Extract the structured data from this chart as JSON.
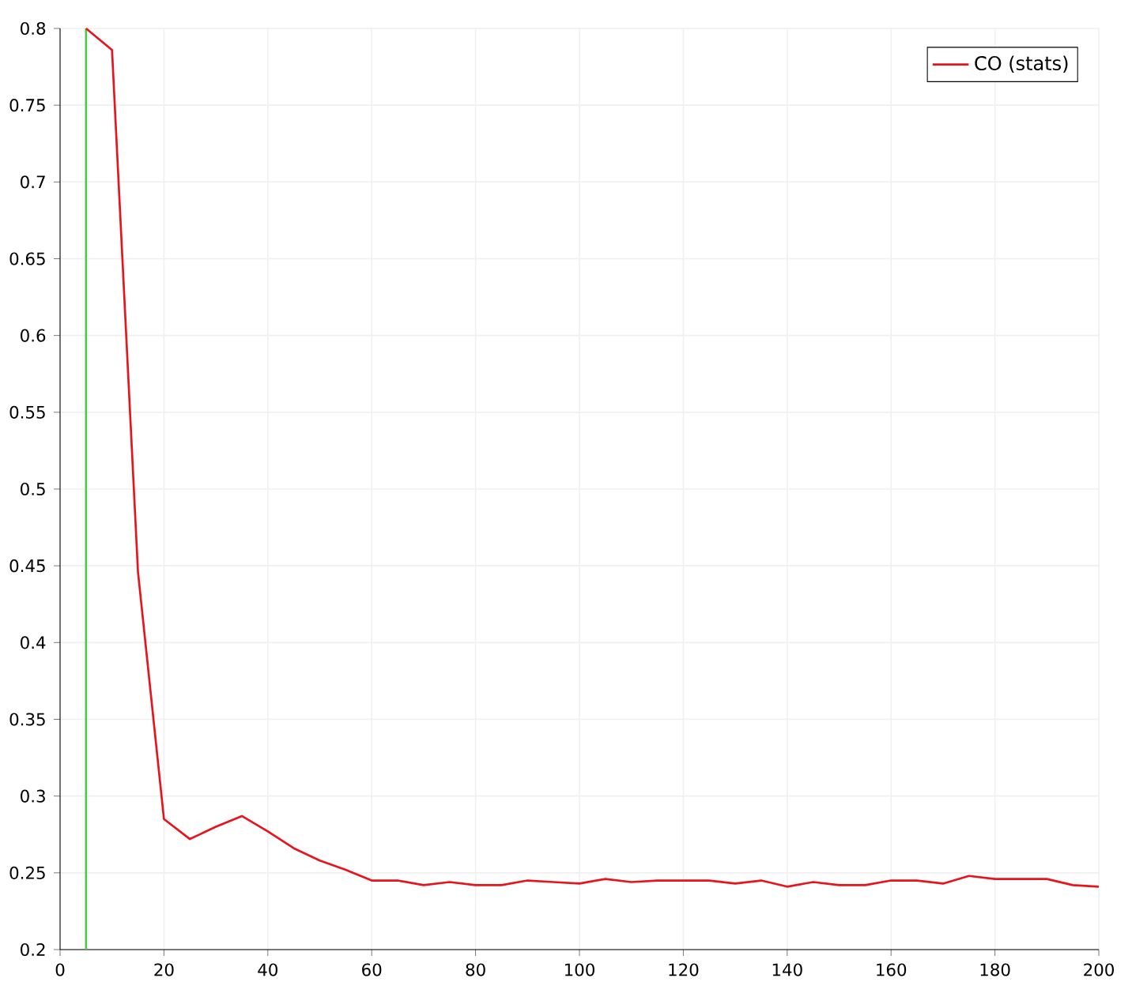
{
  "chart_data": {
    "type": "line",
    "xlim": [
      0,
      200
    ],
    "ylim": [
      0.2,
      0.8
    ],
    "xticks": [
      0,
      20,
      40,
      60,
      80,
      100,
      120,
      140,
      160,
      180,
      200
    ],
    "yticks": [
      0.2,
      0.25,
      0.3,
      0.35,
      0.4,
      0.45,
      0.5,
      0.55,
      0.6,
      0.65,
      0.7,
      0.75,
      0.8
    ],
    "grid": true,
    "legend": "top right",
    "line_style": "solid",
    "marker": "none",
    "ref_lines": [
      {
        "axis": "x",
        "value": 5,
        "color": "#4ec94a",
        "line_style": "solid"
      }
    ],
    "series": [
      {
        "name": "CO (stats)",
        "color": "#e8141c",
        "x": [
          5,
          10,
          15,
          20,
          25,
          30,
          35,
          40,
          45,
          50,
          55,
          60,
          65,
          70,
          75,
          80,
          85,
          90,
          95,
          100,
          105,
          110,
          115,
          120,
          125,
          130,
          135,
          140,
          145,
          150,
          155,
          160,
          165,
          170,
          175,
          180,
          185,
          190,
          195,
          200
        ],
        "values": [
          0.8,
          0.786,
          0.446,
          0.285,
          0.272,
          0.28,
          0.287,
          0.277,
          0.266,
          0.258,
          0.252,
          0.245,
          0.245,
          0.242,
          0.244,
          0.242,
          0.242,
          0.245,
          0.244,
          0.243,
          0.246,
          0.244,
          0.245,
          0.245,
          0.245,
          0.243,
          0.245,
          0.241,
          0.244,
          0.242,
          0.242,
          0.245,
          0.245,
          0.243,
          0.248,
          0.246,
          0.246,
          0.246,
          0.242,
          0.241
        ]
      }
    ]
  }
}
